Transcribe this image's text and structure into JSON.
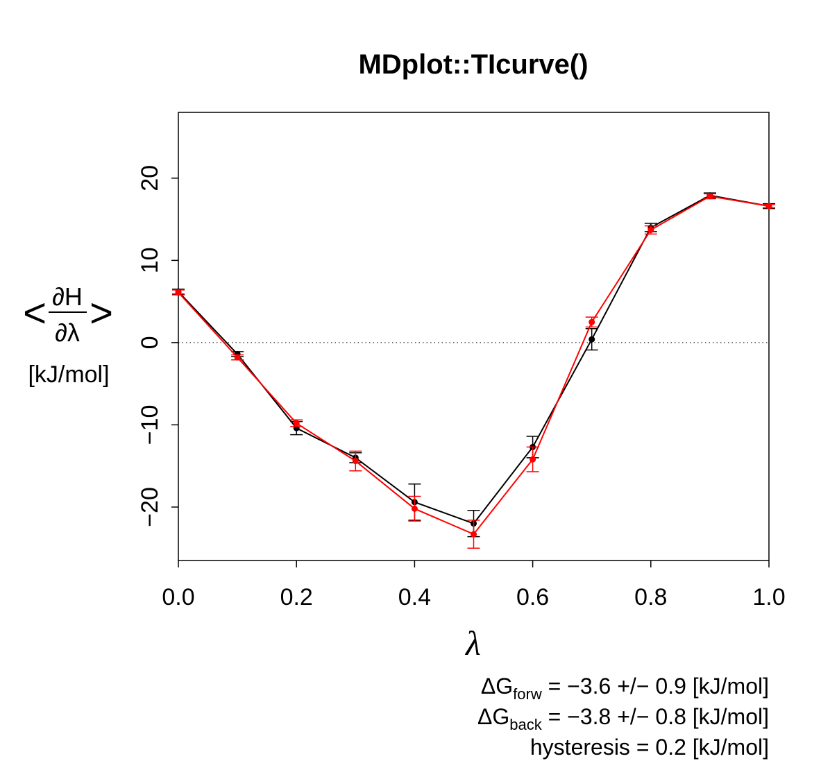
{
  "chart_data": {
    "type": "line",
    "title": "MDplot::TIcurve()",
    "xlabel": "λ",
    "ylabel": {
      "open": "<",
      "numerator": "∂H",
      "denominator": "∂λ",
      "close": ">",
      "unit": "[kJ/mol]"
    },
    "xlim": [
      0.0,
      1.0
    ],
    "ylim": [
      -26.5,
      28
    ],
    "x_ticks": [
      "0.0",
      "0.2",
      "0.4",
      "0.6",
      "0.8",
      "1.0"
    ],
    "y_ticks": [
      "−20",
      "−10",
      "0",
      "10",
      "20"
    ],
    "grid": false,
    "zero_line": "dotted",
    "x": [
      0.0,
      0.1,
      0.2,
      0.3,
      0.4,
      0.5,
      0.6,
      0.7,
      0.8,
      0.9,
      1.0
    ],
    "series": [
      {
        "color": "#000000",
        "values": [
          6.2,
          -1.4,
          -10.4,
          -14.0,
          -19.4,
          -22.0,
          -12.7,
          0.4,
          14.0,
          17.9,
          16.6
        ],
        "errors": [
          0.3,
          0.3,
          0.8,
          0.6,
          2.2,
          1.6,
          1.3,
          1.3,
          0.5,
          0.3,
          0.3
        ]
      },
      {
        "color": "#ff0000",
        "values": [
          6.1,
          -1.8,
          -9.8,
          -14.4,
          -20.2,
          -23.3,
          -14.2,
          2.5,
          13.7,
          17.8,
          16.6
        ],
        "errors": [
          0.3,
          0.3,
          0.4,
          1.2,
          1.5,
          1.7,
          1.5,
          0.6,
          0.5,
          0.3,
          0.2
        ]
      }
    ]
  },
  "annotations": {
    "forw": {
      "prefix": "ΔG",
      "sub": "forw",
      "text": " = −3.6 +/− 0.9 [kJ/mol]"
    },
    "back": {
      "prefix": "ΔG",
      "sub": "back",
      "text": " = −3.8 +/− 0.8 [kJ/mol]"
    },
    "hysteresis": "hysteresis = 0.2 [kJ/mol]"
  }
}
